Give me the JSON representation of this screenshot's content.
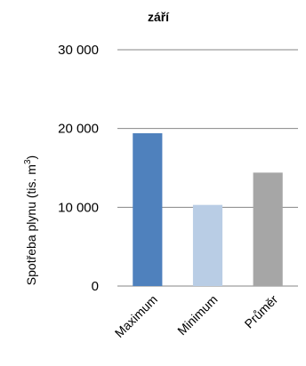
{
  "chart_data": {
    "type": "bar",
    "title": "září",
    "ylabel": "Spotřeba plynu (tis. m",
    "ylabel_superscript": "3",
    "ylabel_close": ")",
    "categories": [
      "Maximum",
      "Minimum",
      "Průměr"
    ],
    "values": [
      19400,
      10300,
      14400
    ],
    "colors": [
      "#4F81BD",
      "#B9CDE5",
      "#A6A6A6"
    ],
    "ylim": [
      0,
      30000
    ],
    "yticks": [
      0,
      10000,
      20000,
      30000
    ],
    "ytick_labels": [
      "0",
      "10 000",
      "20 000",
      "30 000"
    ],
    "grid": true,
    "legend": false
  }
}
